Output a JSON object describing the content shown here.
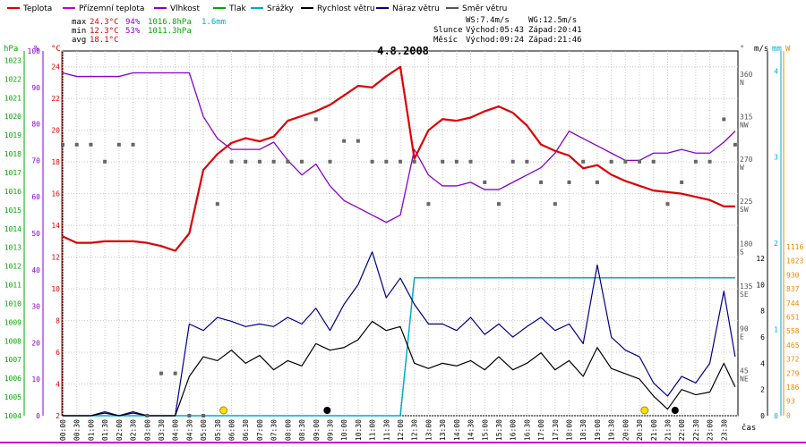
{
  "chart_data": {
    "type": "line",
    "title": "4.8.2008",
    "legend": [
      {
        "label": "Teplota",
        "color": "#dd0000"
      },
      {
        "label": "Přízemní teplota",
        "color": "#cc00cc"
      },
      {
        "label": "Vlhkost",
        "color": "#8800cc"
      },
      {
        "label": "Tlak",
        "color": "#00aa00"
      },
      {
        "label": "Srážky",
        "color": "#00aacc"
      },
      {
        "label": "Rychlost větru",
        "color": "#000000"
      },
      {
        "label": "Náraz větru",
        "color": "#000088"
      },
      {
        "label": "Směr větru",
        "color": "#555555"
      }
    ],
    "stats": {
      "max": {
        "label": "max",
        "temp": "24.3°C",
        "hum": "94%",
        "press": "1016.8hPa",
        "rain": "1.6mm"
      },
      "min": {
        "label": "min",
        "temp": "12.3°C",
        "hum": "53%",
        "press": "1011.3hPa"
      },
      "avg": {
        "label": "avg",
        "temp": "18.1°C"
      }
    },
    "wind_info": {
      "ws": "WS:7.4m/s",
      "wg": "WG:12.5m/s"
    },
    "sun": {
      "label": "Slunce",
      "rise": "Východ:05:43",
      "set": "Západ:20:41"
    },
    "moon": {
      "label": "Měsíc",
      "rise": "Východ:09:24",
      "set": "Západ:21:46"
    },
    "axes": {
      "hpa_label": "hPa",
      "hpa_ticks": [
        "1023",
        "1022",
        "1021",
        "1020",
        "1019",
        "1018",
        "1017",
        "1016",
        "1015",
        "1014",
        "1013",
        "1012",
        "1011",
        "1010",
        "1009",
        "1008",
        "1007",
        "1006",
        "1005",
        "1004"
      ],
      "pct_label": "%",
      "pct_ticks": [
        "100",
        "90",
        "80",
        "70",
        "60",
        "50",
        "40",
        "30",
        "20",
        "10",
        "0"
      ],
      "temp_label": "°C",
      "temp_ticks": [
        "24",
        "22",
        "20",
        "18",
        "16",
        "14",
        "12",
        "10",
        "8",
        "6",
        "4",
        "2"
      ],
      "dir_label": "°",
      "dir_ticks": [
        {
          "deg": "360",
          "name": "N"
        },
        {
          "deg": "315",
          "name": "NW"
        },
        {
          "deg": "270",
          "name": "W"
        },
        {
          "deg": "225",
          "name": "SW"
        },
        {
          "deg": "180",
          "name": "S"
        },
        {
          "deg": "135",
          "name": "SE"
        },
        {
          "deg": "90",
          "name": "E"
        },
        {
          "deg": "45",
          "name": "NE"
        }
      ],
      "ms_label": "m/s",
      "ms_ticks": [
        "12",
        "10",
        "8",
        "6",
        "4",
        "2",
        "0"
      ],
      "mm_label": "mm",
      "mm_ticks": [
        "4",
        "3",
        "2",
        "1",
        "0"
      ],
      "w_label": "W",
      "w_ticks": [
        "1116",
        "1023",
        "930",
        "837",
        "744",
        "651",
        "558",
        "465",
        "372",
        "279",
        "186",
        "93",
        "0"
      ],
      "x_unit": "čas",
      "time_labels": [
        "00:00",
        "00:30",
        "01:00",
        "01:30",
        "02:00",
        "02:30",
        "03:00",
        "03:30",
        "04:00",
        "04:30",
        "05:00",
        "05:30",
        "06:00",
        "06:30",
        "07:00",
        "07:30",
        "08:00",
        "08:30",
        "09:00",
        "09:30",
        "10:00",
        "10:30",
        "11:00",
        "11:30",
        "12:00",
        "12:30",
        "13:00",
        "13:30",
        "14:00",
        "14:30",
        "15:00",
        "15:30",
        "16:00",
        "16:30",
        "17:00",
        "17:30",
        "18:00",
        "18:30",
        "19:00",
        "19:30",
        "20:00",
        "20:30",
        "21:00",
        "21:30",
        "22:00",
        "22:30",
        "23:00",
        "23:30"
      ]
    },
    "hours": [
      0,
      0.5,
      1,
      1.5,
      2,
      2.5,
      3,
      3.5,
      4,
      4.5,
      5,
      5.5,
      6,
      6.5,
      7,
      7.5,
      8,
      8.5,
      9,
      9.5,
      10,
      10.5,
      11,
      11.5,
      12,
      12.5,
      13,
      13.5,
      14,
      14.5,
      15,
      15.5,
      16,
      16.5,
      17,
      17.5,
      18,
      18.5,
      19,
      19.5,
      20,
      20.5,
      21,
      21.5,
      22,
      22.5,
      23,
      23.5,
      23.9
    ],
    "temperature": [
      13.3,
      12.9,
      12.9,
      13.0,
      13.0,
      13.0,
      12.9,
      12.7,
      12.4,
      13.5,
      17.5,
      18.5,
      19.2,
      19.5,
      19.3,
      19.6,
      20.6,
      20.9,
      21.2,
      21.6,
      22.2,
      22.8,
      22.7,
      23.4,
      24.0,
      18.2,
      20.0,
      20.7,
      20.6,
      20.8,
      21.2,
      21.5,
      21.1,
      20.3,
      19.1,
      18.7,
      18.4,
      17.6,
      17.8,
      17.2,
      16.8,
      16.5,
      16.2,
      16.1,
      16.0,
      15.8,
      15.6,
      15.2,
      15.2
    ],
    "humidity": [
      94,
      93,
      93,
      93,
      93,
      94,
      94,
      94,
      94,
      94,
      82,
      76,
      73,
      73,
      73,
      75,
      70,
      66,
      69,
      63,
      59,
      57,
      55,
      53,
      55,
      73,
      66,
      63,
      63,
      64,
      62,
      62,
      64,
      66,
      68,
      72,
      78,
      76,
      74,
      72,
      70,
      70,
      72,
      72,
      73,
      72,
      72,
      75,
      78
    ],
    "rain_accum": [
      0,
      0,
      0,
      0,
      0,
      0,
      0,
      0,
      0,
      0,
      0,
      0,
      0,
      0,
      0,
      0,
      0,
      0,
      0,
      0,
      0,
      0,
      0,
      0,
      0,
      1.6,
      1.6,
      1.6,
      1.6,
      1.6,
      1.6,
      1.6,
      1.6,
      1.6,
      1.6,
      1.6,
      1.6,
      1.6,
      1.6,
      1.6,
      1.6,
      1.6,
      1.6,
      1.6,
      1.6,
      1.6,
      1.6,
      1.6,
      1.6
    ],
    "wind_speed": [
      0,
      0,
      0,
      0.2,
      0,
      0.2,
      0,
      0,
      0,
      3.0,
      4.5,
      4.2,
      5.0,
      4.0,
      4.6,
      3.5,
      4.2,
      3.8,
      5.5,
      5.0,
      5.2,
      5.8,
      7.2,
      6.5,
      6.8,
      4.0,
      3.6,
      4.0,
      3.8,
      4.2,
      3.5,
      4.5,
      3.5,
      4.0,
      4.8,
      3.5,
      4.2,
      3.0,
      5.2,
      3.6,
      3.2,
      2.8,
      1.5,
      0.5,
      2.0,
      1.6,
      1.8,
      4.0,
      2.2
    ],
    "wind_gust": [
      0,
      0,
      0,
      0.3,
      0,
      0.3,
      0,
      0,
      0,
      7.0,
      6.5,
      7.5,
      7.2,
      6.8,
      7.0,
      6.8,
      7.5,
      7.0,
      8.2,
      6.5,
      8.5,
      10.0,
      12.5,
      9.0,
      10.5,
      8.5,
      7.0,
      7.0,
      6.5,
      7.5,
      6.2,
      7.0,
      6.0,
      6.8,
      7.5,
      6.5,
      7.0,
      5.5,
      11.5,
      6.0,
      5.0,
      4.5,
      2.5,
      1.5,
      3.0,
      2.5,
      4.0,
      9.5,
      4.5
    ],
    "wind_dir": [
      288,
      288,
      288,
      270,
      288,
      288,
      0,
      45,
      45,
      0,
      0,
      225,
      270,
      270,
      270,
      270,
      270,
      270,
      315,
      270,
      292,
      292,
      270,
      270,
      270,
      270,
      225,
      270,
      270,
      270,
      248,
      225,
      270,
      270,
      248,
      225,
      248,
      270,
      248,
      270,
      270,
      270,
      270,
      225,
      248,
      270,
      270,
      315,
      288
    ],
    "sun_markers": [
      "05:43",
      "20:41"
    ],
    "moon_markers": [
      "09:24",
      "21:46"
    ],
    "ylim_temp": [
      2,
      25
    ],
    "ylim_pct": [
      0,
      100
    ],
    "ylim_hpa": [
      1004,
      1023.5
    ],
    "ylim_ms": [
      0,
      13.3
    ],
    "ylim_mm": [
      0,
      4.2
    ],
    "ylim_deg": [
      0,
      380
    ]
  }
}
